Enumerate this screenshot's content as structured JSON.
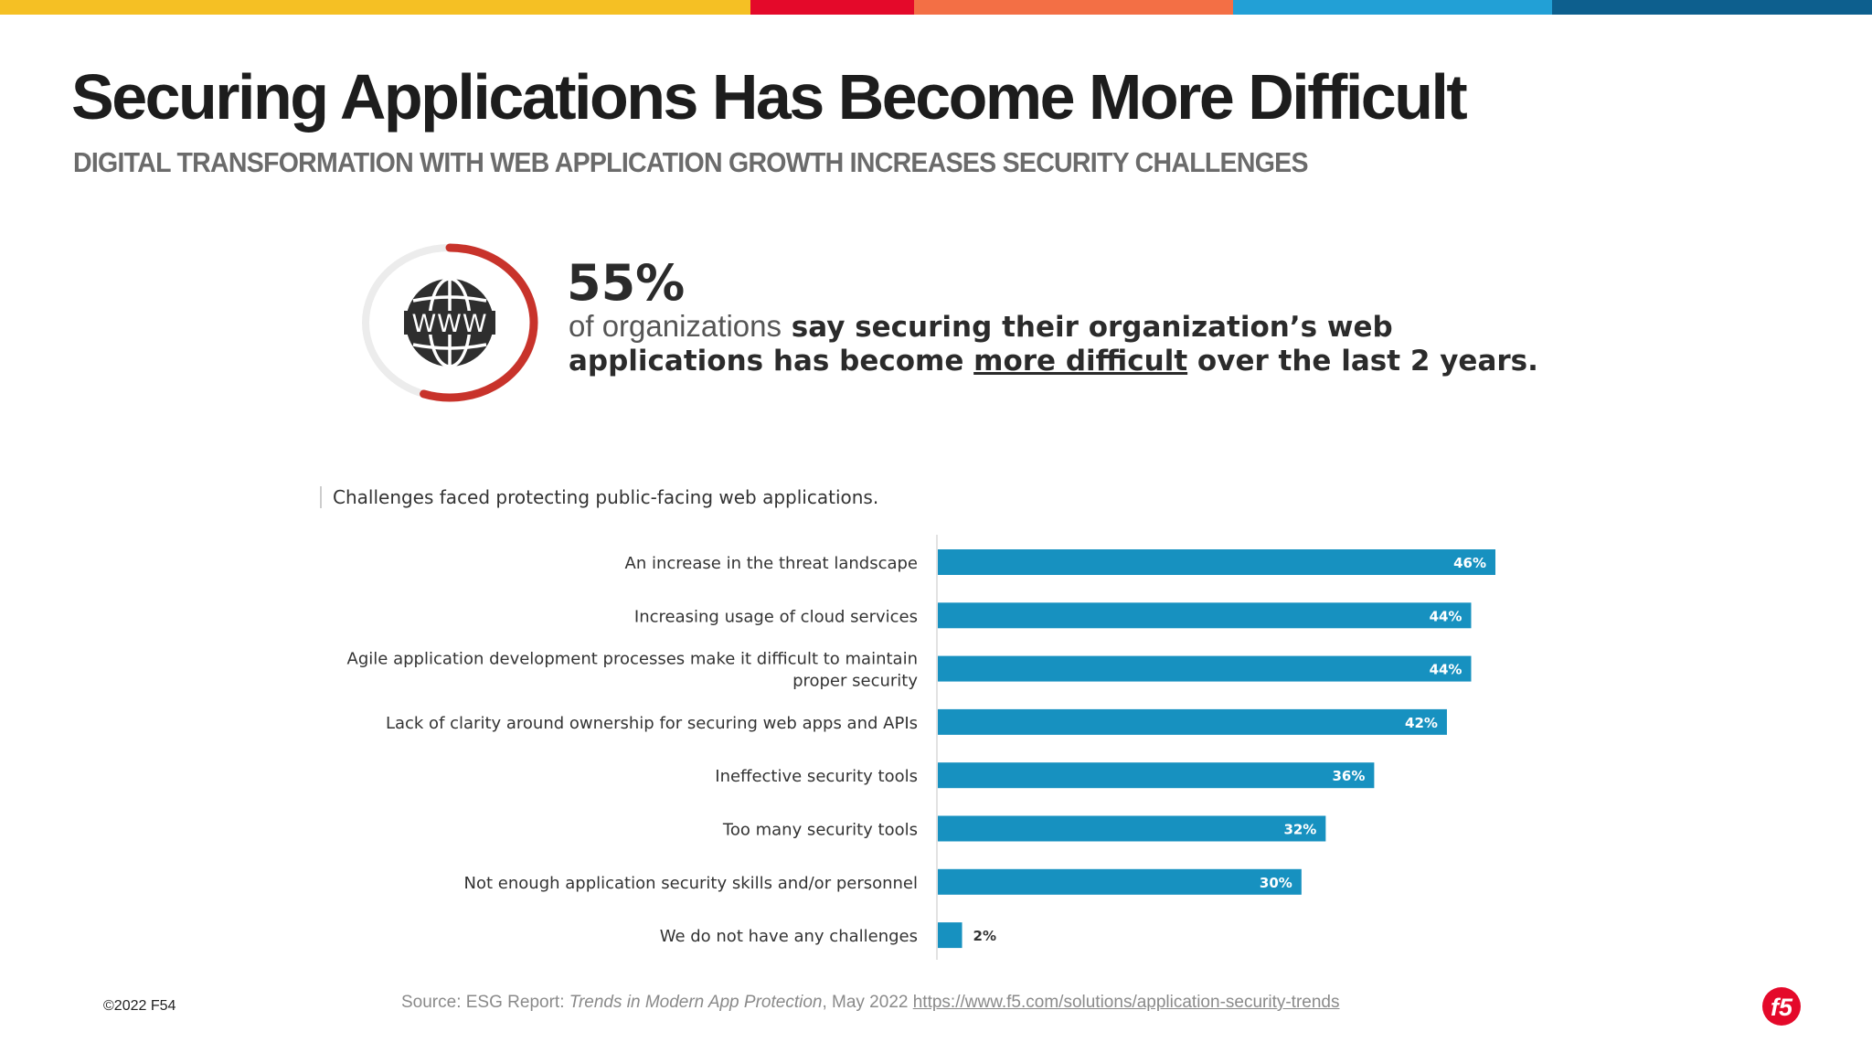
{
  "colors": {
    "top_bar": [
      "#f5c024",
      "#e4092a",
      "#f36f45",
      "#22a0d6",
      "#0d5f8e"
    ],
    "bar": "#1791c0",
    "ring_accent": "#c8332b",
    "ring_track": "#ececec",
    "logo": "#e4092a"
  },
  "header": {
    "title": "Securing Applications Has Become More Difficult",
    "subtitle": "DIGITAL TRANSFORMATION WITH WEB APPLICATION GROWTH INCREASES  SECURITY CHALLENGES"
  },
  "stat": {
    "icon": "www-globe-icon",
    "value": "55%",
    "ring_fraction": 0.55,
    "line1_light": "of organizations",
    "line1_bold": " say securing their organization’s web",
    "line2_pre": "applications has become ",
    "line2_underline": "more difficult",
    "line2_post": " over the last 2 years."
  },
  "chart_data": {
    "type": "bar",
    "orientation": "horizontal",
    "title": "Challenges faced protecting public-facing web applications.",
    "categories": [
      [
        "An increase in the threat landscape"
      ],
      [
        "Increasing usage of cloud services"
      ],
      [
        "Agile application development processes make it difficult to maintain",
        "proper security"
      ],
      [
        "Lack of clarity around ownership for securing web apps and APIs"
      ],
      [
        "Ineffective security tools"
      ],
      [
        "Too many security tools"
      ],
      [
        "Not enough application security skills and/or personnel"
      ],
      [
        "We do not have any challenges"
      ]
    ],
    "values": [
      46,
      44,
      44,
      42,
      36,
      32,
      30,
      2
    ],
    "value_labels": [
      "46%",
      "44%",
      "44%",
      "42%",
      "36%",
      "32%",
      "30%",
      "2%"
    ],
    "xlim": [
      0,
      46
    ],
    "grid": false,
    "legend": "none"
  },
  "footer": {
    "copyright": "©2022 F5",
    "page_number": "4",
    "source_prefix": "Source: ESG Report: ",
    "source_title": "Trends in Modern App Protection",
    "source_date": ", May 2022 ",
    "source_link": "https://www.f5.com/solutions/application-security-trends",
    "logo": "f5-logo-icon"
  }
}
